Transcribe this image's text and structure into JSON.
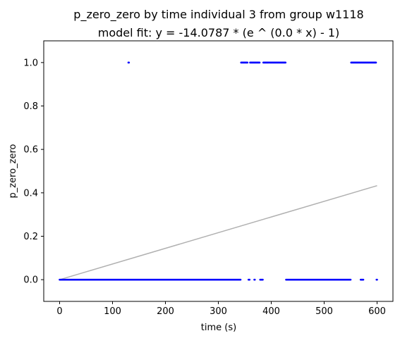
{
  "chart_data": {
    "type": "scatter",
    "title": "p_zero_zero by time individual 3 from group w1118",
    "subtitle": "model fit: y = -14.0787 * (e ^ (0.0 * x) - 1)",
    "xlabel": "time (s)",
    "ylabel": "p_zero_zero",
    "xlim": [
      -30,
      630
    ],
    "ylim": [
      -0.1,
      1.1
    ],
    "x_ticks": [
      0,
      100,
      200,
      300,
      400,
      500,
      600
    ],
    "y_ticks": [
      0.0,
      0.2,
      0.4,
      0.6,
      0.8,
      1.0
    ],
    "x_tick_labels": [
      "0",
      "100",
      "200",
      "300",
      "400",
      "500",
      "600"
    ],
    "y_tick_labels": [
      "0.0",
      "0.2",
      "0.4",
      "0.6",
      "0.8",
      "1.0"
    ],
    "grid": false,
    "colors": {
      "points": "#0000ff",
      "fit_line": "#b0b0b0"
    },
    "point_runs": [
      {
        "y": 0,
        "x_start": 0,
        "x_end": 342
      },
      {
        "y": 0,
        "x_start": 357,
        "x_end": 359
      },
      {
        "y": 0,
        "x_start": 368,
        "x_end": 369
      },
      {
        "y": 0,
        "x_start": 379,
        "x_end": 384
      },
      {
        "y": 0,
        "x_start": 428,
        "x_end": 550
      },
      {
        "y": 0,
        "x_start": 569,
        "x_end": 574
      },
      {
        "y": 0,
        "x_start": 599,
        "x_end": 600
      },
      {
        "y": 1,
        "x_start": 130,
        "x_end": 131
      },
      {
        "y": 1,
        "x_start": 343,
        "x_end": 355
      },
      {
        "y": 1,
        "x_start": 360,
        "x_end": 378
      },
      {
        "y": 1,
        "x_start": 385,
        "x_end": 427
      },
      {
        "y": 1,
        "x_start": 551,
        "x_end": 598
      }
    ],
    "fit_line": {
      "x": [
        0,
        600
      ],
      "y": [
        0.0,
        0.433
      ]
    }
  }
}
